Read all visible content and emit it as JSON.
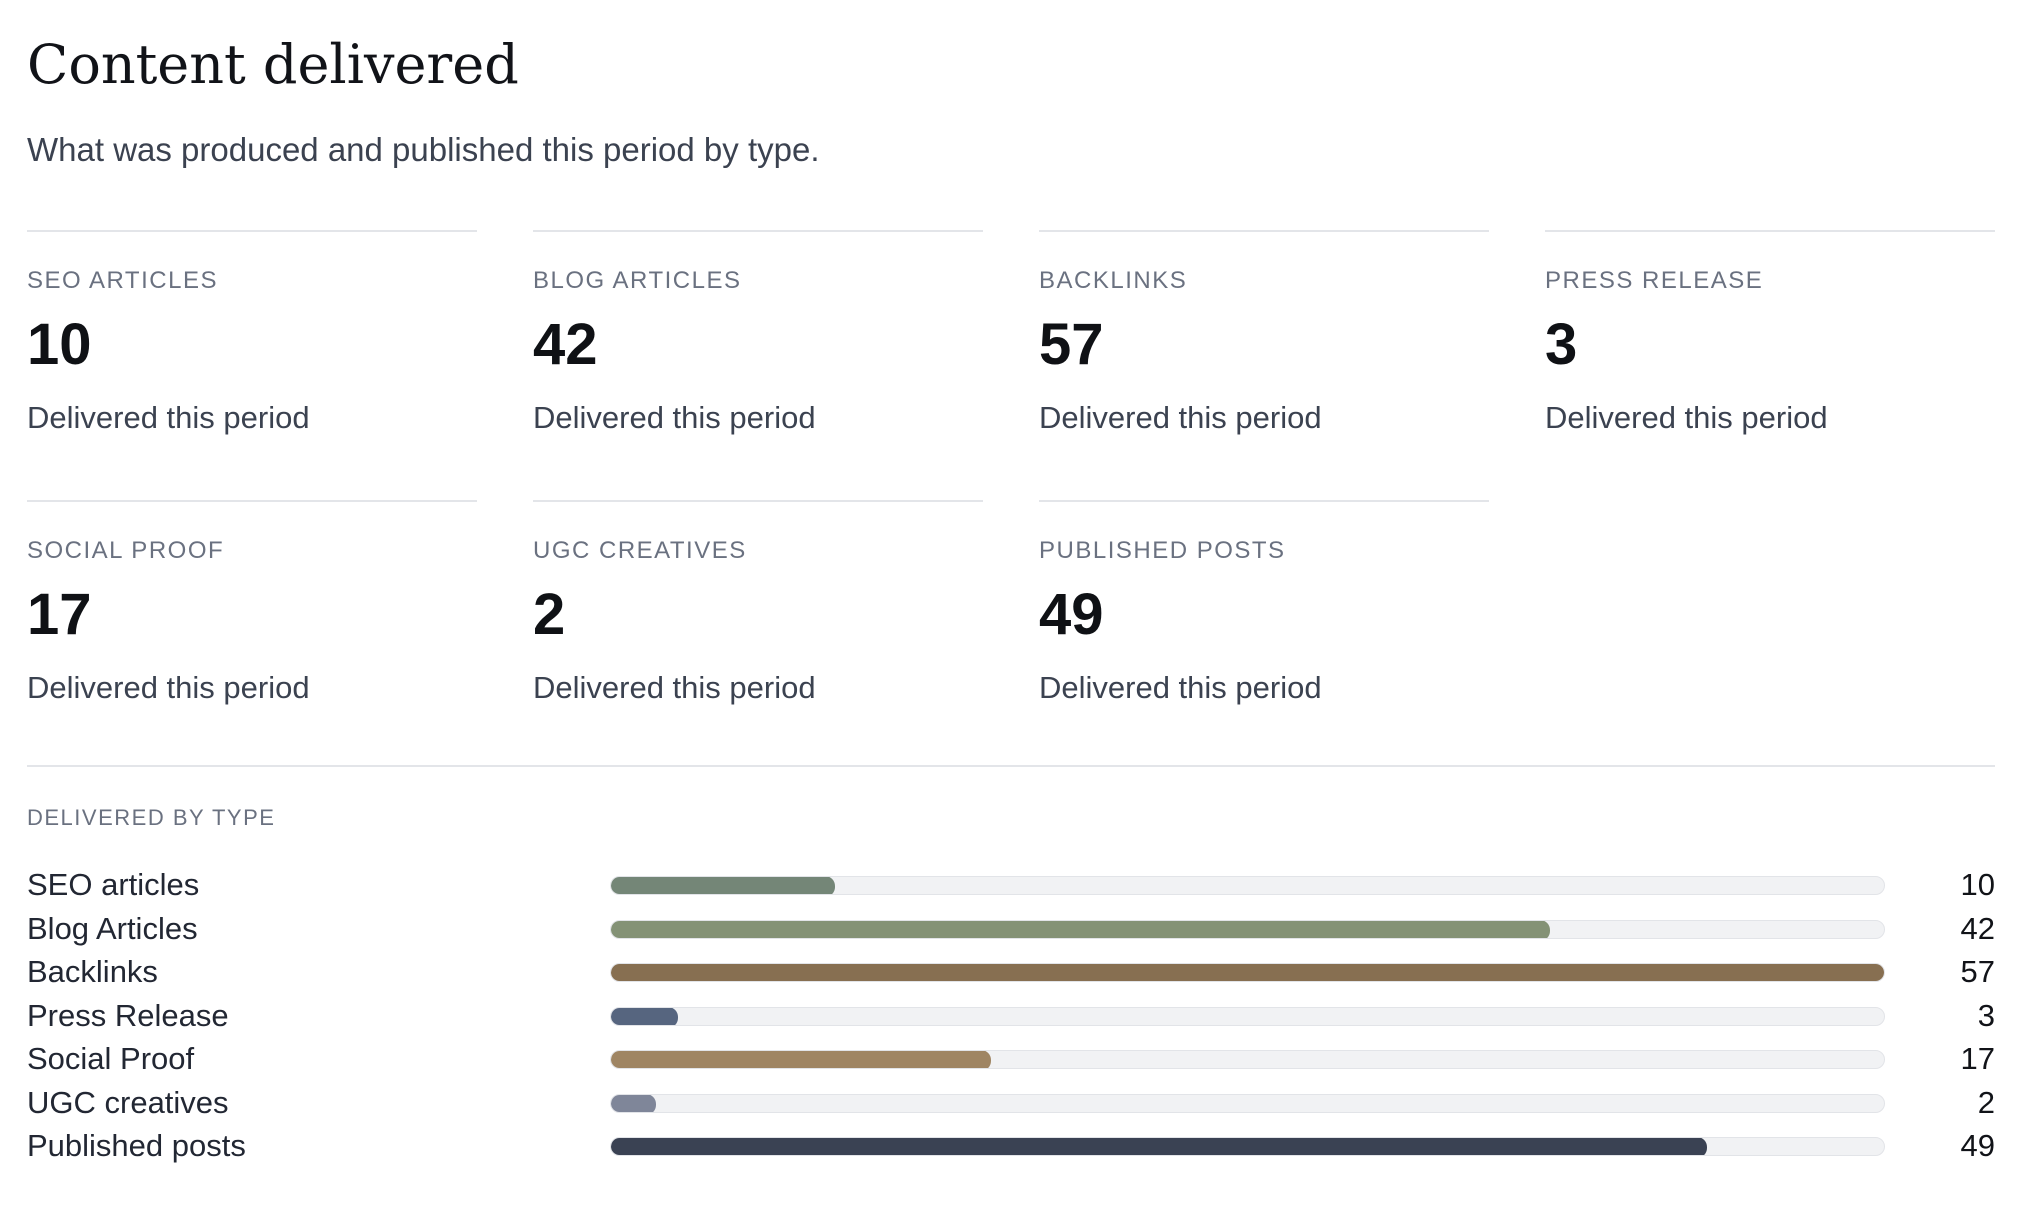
{
  "header": {
    "title": "Content delivered",
    "subtitle": "What was produced and published this period by type."
  },
  "stats": [
    {
      "label": "SEO ARTICLES",
      "value": "10",
      "caption": "Delivered this period"
    },
    {
      "label": "BLOG ARTICLES",
      "value": "42",
      "caption": "Delivered this period"
    },
    {
      "label": "BACKLINKS",
      "value": "57",
      "caption": "Delivered this period"
    },
    {
      "label": "PRESS RELEASE",
      "value": "3",
      "caption": "Delivered this period"
    },
    {
      "label": "SOCIAL PROOF",
      "value": "17",
      "caption": "Delivered this period"
    },
    {
      "label": "UGC CREATIVES",
      "value": "2",
      "caption": "Delivered this period"
    },
    {
      "label": "PUBLISHED POSTS",
      "value": "49",
      "caption": "Delivered this period"
    }
  ],
  "chart_data": {
    "type": "bar",
    "orientation": "horizontal",
    "title": "DELIVERED BY TYPE",
    "categories": [
      "SEO articles",
      "Blog Articles",
      "Backlinks",
      "Press Release",
      "Social Proof",
      "UGC creatives",
      "Published posts"
    ],
    "values": [
      10,
      42,
      57,
      3,
      17,
      2,
      49
    ],
    "colors": [
      "#748677",
      "#849276",
      "#876f51",
      "#56657f",
      "#9f8563",
      "#7f8699",
      "#3a4253"
    ],
    "track_color": "#f1f2f4",
    "xlim": [
      0,
      57
    ],
    "grid": false,
    "value_labels": true
  }
}
